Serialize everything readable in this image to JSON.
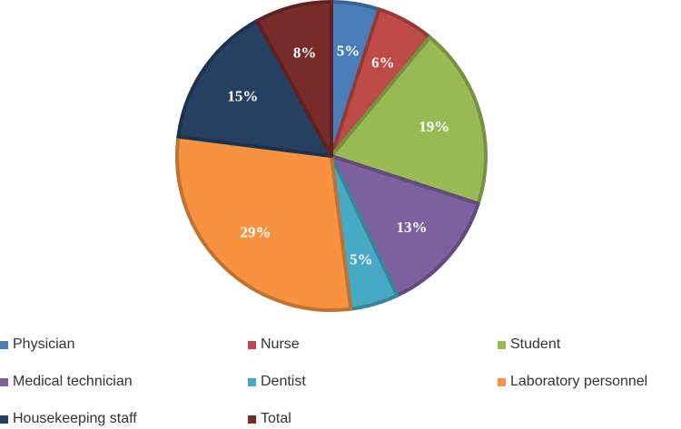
{
  "chart_data": {
    "type": "pie",
    "title": "",
    "legend_position": "bottom",
    "slices": [
      {
        "name": "Physician",
        "value": 5,
        "label": "5%",
        "color": "#4a7ebb"
      },
      {
        "name": "Nurse",
        "value": 6,
        "label": "6%",
        "color": "#be4b48"
      },
      {
        "name": "Student",
        "value": 19,
        "label": "19%",
        "color": "#98b954"
      },
      {
        "name": "Medical technician",
        "value": 13,
        "label": "13%",
        "color": "#7d60a0"
      },
      {
        "name": "Dentist",
        "value": 5,
        "label": "5%",
        "color": "#46aac5"
      },
      {
        "name": "Laboratory personnel",
        "value": 29,
        "label": "29%",
        "color": "#f69240"
      },
      {
        "name": "Housekeeping staff",
        "value": 15,
        "label": "15%",
        "color": "#254061"
      },
      {
        "name": "Total",
        "value": 8,
        "label": "8%",
        "color": "#772c2a"
      }
    ]
  }
}
